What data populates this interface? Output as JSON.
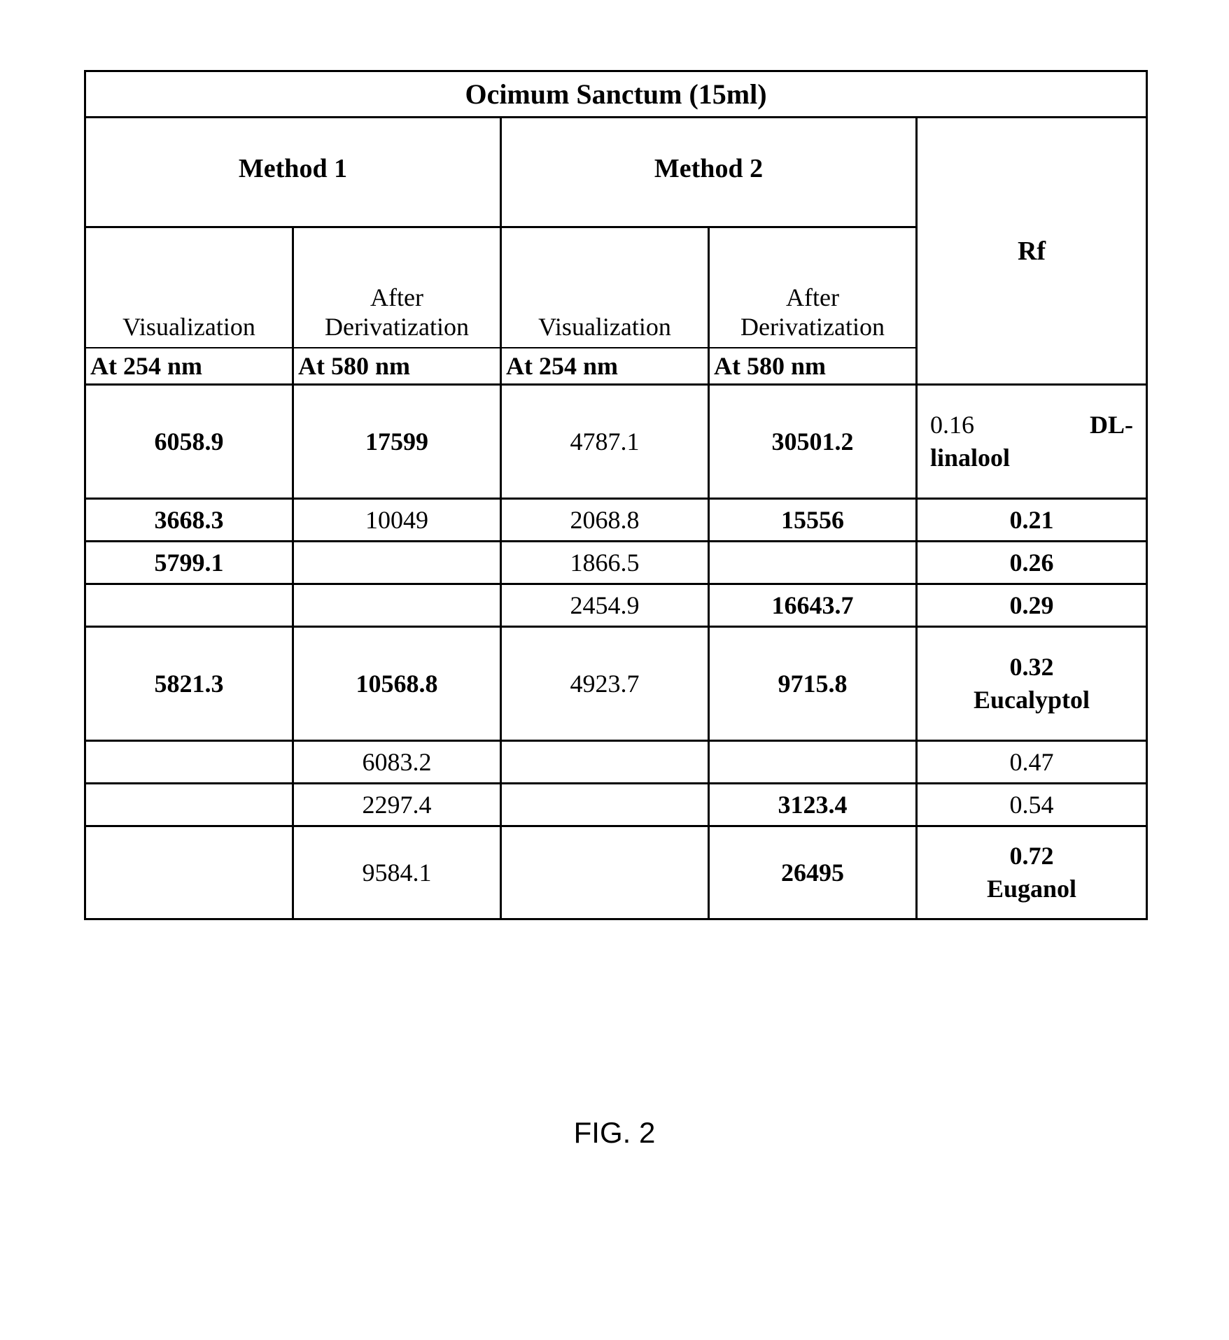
{
  "table": {
    "title": "Ocimum Sanctum (15ml)",
    "method1_label": "Method 1",
    "method2_label": "Method 2",
    "rf_label": "Rf",
    "subheaders": {
      "m1_visualization": "Visualization",
      "m1_derivatization": "After Derivatization",
      "m2_visualization": "Visualization",
      "m2_derivatization": "After Derivatization"
    },
    "wavelengths": {
      "m1_vis": "At 254 nm",
      "m1_der": "At 580 nm",
      "m2_vis": "At 254 nm",
      "m2_der": "At 580 nm"
    },
    "rows": [
      {
        "m1v": "6058.9",
        "m1v_bold": true,
        "m1d": "17599",
        "m1d_bold": true,
        "m2v": "4787.1",
        "m2v_bold": false,
        "m2d": "30501.2",
        "m2d_bold": true,
        "rf_num": "0.16",
        "rf_compound": "DL-linalool",
        "height": "tall"
      },
      {
        "m1v": "3668.3",
        "m1v_bold": true,
        "m1d": "10049",
        "m1d_bold": false,
        "m2v": "2068.8",
        "m2v_bold": false,
        "m2d": "15556",
        "m2d_bold": true,
        "rf": "0.21",
        "rf_bold": true,
        "height": "short"
      },
      {
        "m1v": "5799.1",
        "m1v_bold": true,
        "m1d": "",
        "m1d_bold": false,
        "m2v": "1866.5",
        "m2v_bold": false,
        "m2d": "",
        "m2d_bold": false,
        "rf": "0.26",
        "rf_bold": true,
        "height": "short"
      },
      {
        "m1v": "",
        "m1v_bold": false,
        "m1d": "",
        "m1d_bold": false,
        "m2v": "2454.9",
        "m2v_bold": false,
        "m2d": "16643.7",
        "m2d_bold": true,
        "rf": "0.29",
        "rf_bold": true,
        "height": "short"
      },
      {
        "m1v": "5821.3",
        "m1v_bold": true,
        "m1d": "10568.8",
        "m1d_bold": true,
        "m2v": "4923.7",
        "m2v_bold": false,
        "m2d": "9715.8",
        "m2d_bold": true,
        "rf_num": "0.32",
        "rf_compound": "Eucalyptol",
        "rf_center": true,
        "height": "tall"
      },
      {
        "m1v": "",
        "m1v_bold": false,
        "m1d": "6083.2",
        "m1d_bold": false,
        "m2v": "",
        "m2v_bold": false,
        "m2d": "",
        "m2d_bold": false,
        "rf": "0.47",
        "rf_bold": false,
        "height": "short"
      },
      {
        "m1v": "",
        "m1v_bold": false,
        "m1d": "2297.4",
        "m1d_bold": false,
        "m2v": "",
        "m2v_bold": false,
        "m2d": "3123.4",
        "m2d_bold": true,
        "rf": "0.54",
        "rf_bold": false,
        "height": "short"
      },
      {
        "m1v": "",
        "m1v_bold": false,
        "m1d": "9584.1",
        "m1d_bold": false,
        "m2v": "",
        "m2v_bold": false,
        "m2d": "26495",
        "m2d_bold": true,
        "rf_num": "0.72",
        "rf_compound": "Euganol",
        "rf_center": true,
        "height": "med"
      }
    ]
  },
  "figure_label": "FIG. 2"
}
